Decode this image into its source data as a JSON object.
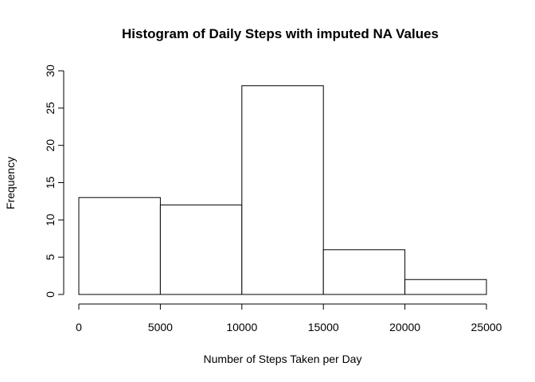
{
  "chart_data": {
    "type": "bar",
    "title": "Histogram of Daily Steps with imputed NA Values",
    "xlabel": "Number of Steps Taken per Day",
    "ylabel": "Frequency",
    "bins": [
      {
        "from": 0,
        "to": 5000,
        "count": 13
      },
      {
        "from": 5000,
        "to": 10000,
        "count": 12
      },
      {
        "from": 10000,
        "to": 15000,
        "count": 28
      },
      {
        "from": 15000,
        "to": 20000,
        "count": 6
      },
      {
        "from": 20000,
        "to": 25000,
        "count": 2
      }
    ],
    "xlim": [
      0,
      25000
    ],
    "ylim": [
      0,
      30
    ],
    "xticks": [
      0,
      5000,
      10000,
      15000,
      20000,
      25000
    ],
    "yticks": [
      0,
      5,
      10,
      15,
      20,
      25,
      30
    ],
    "grid": false,
    "colors": {
      "bar_fill": "#ffffff",
      "bar_stroke": "#000000"
    }
  }
}
